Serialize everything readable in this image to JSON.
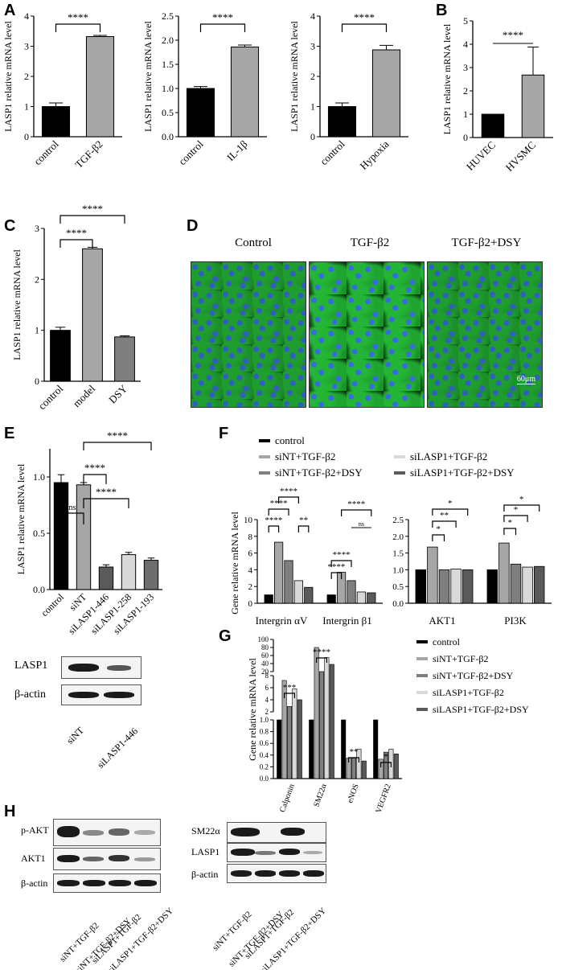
{
  "panels": {
    "A": "A",
    "B": "B",
    "C": "C",
    "D": "D",
    "E": "E",
    "F": "F",
    "G": "G",
    "H": "H"
  },
  "chart_data": [
    {
      "id": "A1",
      "type": "bar",
      "categories": [
        "control",
        "TGF-β2"
      ],
      "values": [
        1.0,
        3.32
      ],
      "errors": [
        0.12,
        0.04
      ],
      "colors": [
        "#000000",
        "#a6a6a6"
      ],
      "ylabel": "LASP1 relative mRNA level",
      "ylim": [
        0,
        4
      ],
      "yticks": [
        "0",
        "1",
        "2",
        "3",
        "4"
      ],
      "sig": "****"
    },
    {
      "id": "A2",
      "type": "bar",
      "categories": [
        "control",
        "IL-1β"
      ],
      "values": [
        1.0,
        1.86
      ],
      "errors": [
        0.04,
        0.04
      ],
      "colors": [
        "#000000",
        "#a6a6a6"
      ],
      "ylabel": "LASP1 relative mRNA level",
      "ylim": [
        0,
        2.5
      ],
      "yticks": [
        "0.0",
        "0.5",
        "1.0",
        "1.5",
        "2.0",
        "2.5"
      ],
      "sig": "****"
    },
    {
      "id": "A3",
      "type": "bar",
      "categories": [
        "control",
        "Hypoxia"
      ],
      "values": [
        1.0,
        2.88
      ],
      "errors": [
        0.12,
        0.15
      ],
      "colors": [
        "#000000",
        "#a6a6a6"
      ],
      "ylabel": "LASP1 relative mRNA level",
      "ylim": [
        0,
        4
      ],
      "yticks": [
        "0",
        "1",
        "2",
        "3",
        "4"
      ],
      "sig": "****"
    },
    {
      "id": "B",
      "type": "bar",
      "categories": [
        "HUVEC",
        "HVSMC"
      ],
      "values": [
        1.0,
        2.68
      ],
      "errors": [
        0.0,
        1.2
      ],
      "colors": [
        "#000000",
        "#a6a6a6"
      ],
      "ylabel": "LASP1 relative mRNA level",
      "ylim": [
        0,
        5
      ],
      "yticks": [
        "0",
        "1",
        "2",
        "3",
        "4",
        "5"
      ],
      "sig": "****"
    },
    {
      "id": "C",
      "type": "bar",
      "categories": [
        "control",
        "model",
        "DSY"
      ],
      "values": [
        1.0,
        2.6,
        0.87
      ],
      "errors": [
        0.06,
        0.03,
        0.02
      ],
      "colors": [
        "#000000",
        "#a6a6a6",
        "#7f7f7f"
      ],
      "ylabel": "LASP1 relative mRNA level",
      "ylim": [
        0,
        3
      ],
      "yticks": [
        "0",
        "1",
        "2",
        "3"
      ],
      "sig": [
        "****",
        "****"
      ]
    },
    {
      "id": "E",
      "type": "bar",
      "categories": [
        "control",
        "siNT",
        "siLASP1-446",
        "siLASP1-258",
        "siLASP1-193"
      ],
      "values": [
        0.95,
        0.93,
        0.2,
        0.31,
        0.26
      ],
      "errors": [
        0.07,
        0.02,
        0.02,
        0.02,
        0.02
      ],
      "colors": [
        "#000000",
        "#a6a6a6",
        "#5a5a5a",
        "#d9d9d9",
        "#6e6e6e"
      ],
      "ylabel": "LASP1 relative mRNA level",
      "ylim": [
        0,
        1.25
      ],
      "yticks": [
        "0.0",
        "0.5",
        "1.0"
      ],
      "sig": [
        "ns",
        "****",
        "****",
        "****"
      ]
    },
    {
      "id": "F",
      "type": "bar",
      "groups": [
        "Intergrin αV",
        "Intergrin β1",
        "AKT1",
        "PI3K"
      ],
      "series": [
        {
          "name": "control",
          "values": [
            1.0,
            1.0,
            1.0,
            1.0
          ],
          "color": "#000000"
        },
        {
          "name": "siNT+TGF-β2",
          "values": [
            7.3,
            3.7,
            1.68,
            1.8
          ],
          "color": "#a6a6a6"
        },
        {
          "name": "siNT+TGF-β2+DSY",
          "values": [
            5.1,
            2.7,
            1.0,
            1.17
          ],
          "color": "#7f7f7f"
        },
        {
          "name": "siLASP1+TGF-β2",
          "values": [
            2.7,
            1.35,
            1.02,
            1.08
          ],
          "color": "#d9d9d9"
        },
        {
          "name": "siLASP1+TGF-β2+DSY",
          "values": [
            1.9,
            1.25,
            1.0,
            1.1
          ],
          "color": "#5a5a5a"
        }
      ],
      "ylabel": "Gene relative mRNA level",
      "ylim_left": [
        0,
        10
      ],
      "yticks_left": [
        "0",
        "2",
        "4",
        "6",
        "8",
        "10"
      ],
      "ylim_right": [
        0,
        2.5
      ],
      "yticks_right": [
        "0.0",
        "0.5",
        "1.0",
        "1.5",
        "2.0",
        "2.5"
      ],
      "sig_labels": [
        "****",
        "****",
        "****",
        "**",
        "****",
        "****",
        "ns",
        "*",
        "**",
        "*",
        "*",
        "*",
        "*"
      ]
    },
    {
      "id": "G",
      "type": "bar",
      "groups": [
        "Calponin",
        "SM22α",
        "eNOS",
        "VEGFR2"
      ],
      "series": [
        {
          "name": "control",
          "values": [
            1.0,
            1.0,
            1.0,
            1.0
          ]
        },
        {
          "name": "siNT+TGF-β2",
          "values": [
            7.2,
            80,
            0.35,
            0.33
          ]
        },
        {
          "name": "siNT+TGF-β2+DSY",
          "values": [
            2.9,
            20,
            0.35,
            0.45
          ]
        },
        {
          "name": "siLASP1+TGF-β2",
          "values": [
            5.8,
            55,
            0.5,
            0.5
          ]
        },
        {
          "name": "siLASP1+TGF-β2+DSY",
          "values": [
            4.0,
            38,
            0.3,
            0.42
          ]
        }
      ],
      "ylabel": "Gene relative mRNA level",
      "yticks_top": [
        "20",
        "40",
        "60",
        "80",
        "100"
      ],
      "yticks_mid": [
        "2",
        "4",
        "6",
        "8"
      ],
      "yticks_low": [
        "0.0",
        "0.2",
        "0.4",
        "0.6",
        "0.8",
        "1.0"
      ],
      "sig_labels": [
        "***",
        "****",
        "**",
        "*"
      ]
    }
  ],
  "legend_F": [
    "control",
    "siNT+TGF-β2",
    "siNT+TGF-β2+DSY",
    "siLASP1+TGF-β2",
    "siLASP1+TGF-β2+DSY"
  ],
  "legend_G": [
    "control",
    "siNT+TGF-β2",
    "siNT+TGF-β2+DSY",
    "siLASP1+TGF-β2",
    "siLASP1+TGF-β2+DSY"
  ],
  "panel_D": {
    "titles": [
      "Control",
      "TGF-β2",
      "TGF-β2+DSY"
    ],
    "scale_bar": "60μm"
  },
  "blot_E": {
    "rows": [
      "LASP1",
      "β-actin"
    ],
    "lanes": [
      "siNT",
      "siLASP1-446"
    ]
  },
  "blot_H_left": {
    "rows": [
      "p-AKT",
      "AKT1",
      "β-actin"
    ],
    "lanes": [
      "siNT+TGF-β2",
      "siNT+TGF-β2+DSY",
      "siLASP1+TGF-β2",
      "siLASP1+TGF-β2+DSY"
    ]
  },
  "blot_H_right": {
    "rows": [
      "SM22α",
      "LASP1",
      "β-actin"
    ],
    "lanes": [
      "siNT+TGF-β2",
      "siNT+TGF-β2+DSY",
      "siLASP1+TGF-β2",
      "siLASP1+TGF-β2+DSY"
    ]
  }
}
